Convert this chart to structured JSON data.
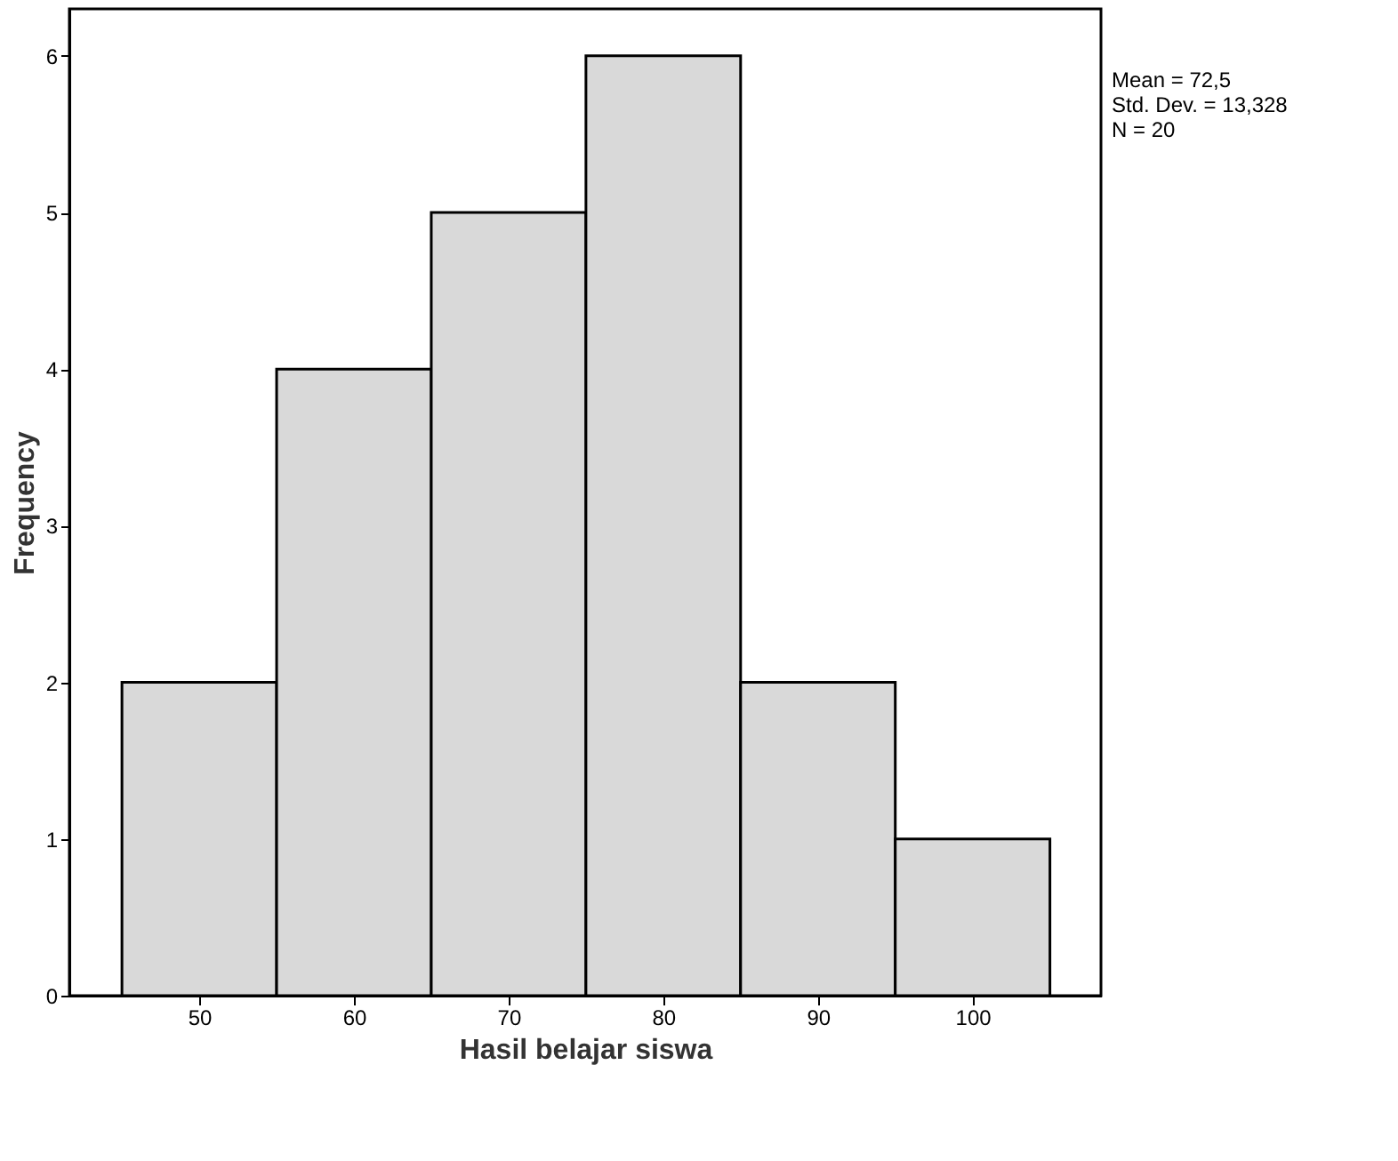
{
  "chart_data": {
    "type": "histogram",
    "xlabel": "Hasil belajar siswa",
    "ylabel": "Frequency",
    "bins": [
      45,
      55,
      65,
      75,
      85,
      95,
      105
    ],
    "values": [
      2,
      4,
      5,
      6,
      2,
      1
    ],
    "color": "#d9d9d9",
    "xlim": [
      41.6,
      108.3
    ],
    "xticks": [
      50,
      60,
      70,
      80,
      90,
      100
    ],
    "ylim": [
      0,
      6.3
    ],
    "yticks": [
      0,
      1,
      2,
      3,
      4,
      5,
      6
    ],
    "annotations": [
      "Mean = 72,5",
      "Std. Dev. = 13,328",
      "N = 20"
    ],
    "grid": false
  }
}
